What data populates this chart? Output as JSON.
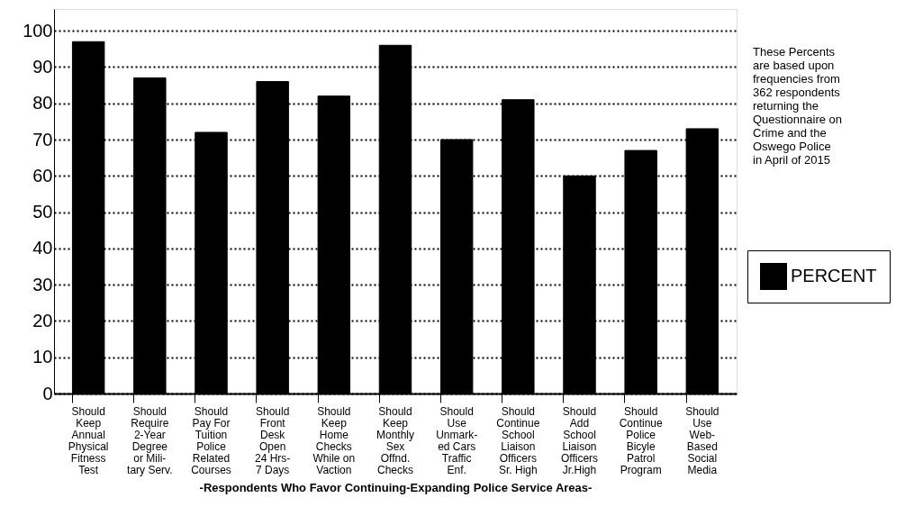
{
  "chart_data": {
    "type": "bar",
    "xlabel": "-Respondents Who Favor Continuing-Expanding Police Service Areas-",
    "categories": [
      "Should\nKeep\nAnnual\nPhysical\nFitness\nTest",
      "Should\nRequire\n2-Year\nDegree\nor Mili-\ntary Serv.",
      "Should\nPay For\nTuition\nPolice\nRelated\nCourses",
      "Should\nFront\nDesk\nOpen\n24 Hrs-\n7 Days",
      "Should\nKeep\nHome\nChecks\nWhile on\nVaction",
      "Should\nKeep\nMonthly\nSex\nOffnd.\nChecks",
      "Should\nUse\nUnmark-\ned Cars\nTraffic\nEnf.",
      "Should\nContinue\nSchool\nLiaison\nOfficers\nSr. High",
      "Should\nAdd\nSchool\nLiaison\nOfficers\nJr.High",
      "Should\nContinue\nPolice\nBicyle\nPatrol\nProgram",
      "Should\nUse\nWeb-\nBased\nSocial\nMedia"
    ],
    "series": [
      {
        "name": "PERCENT",
        "color": "#000000",
        "values": [
          97,
          87,
          72,
          86,
          82,
          96,
          70,
          81,
          60,
          67,
          73
        ]
      }
    ],
    "ylim": [
      0,
      106
    ],
    "yticks": [
      0,
      10,
      20,
      30,
      40,
      50,
      60,
      70,
      80,
      90,
      100
    ],
    "grid": "y",
    "legend": "right",
    "annotations": [
      "These Percents\nare based upon\nfrequencies from\n362 respondents\nreturning the\nQuestionnaire on\nCrime and the\nOswego Police\nin April of 2015"
    ]
  }
}
